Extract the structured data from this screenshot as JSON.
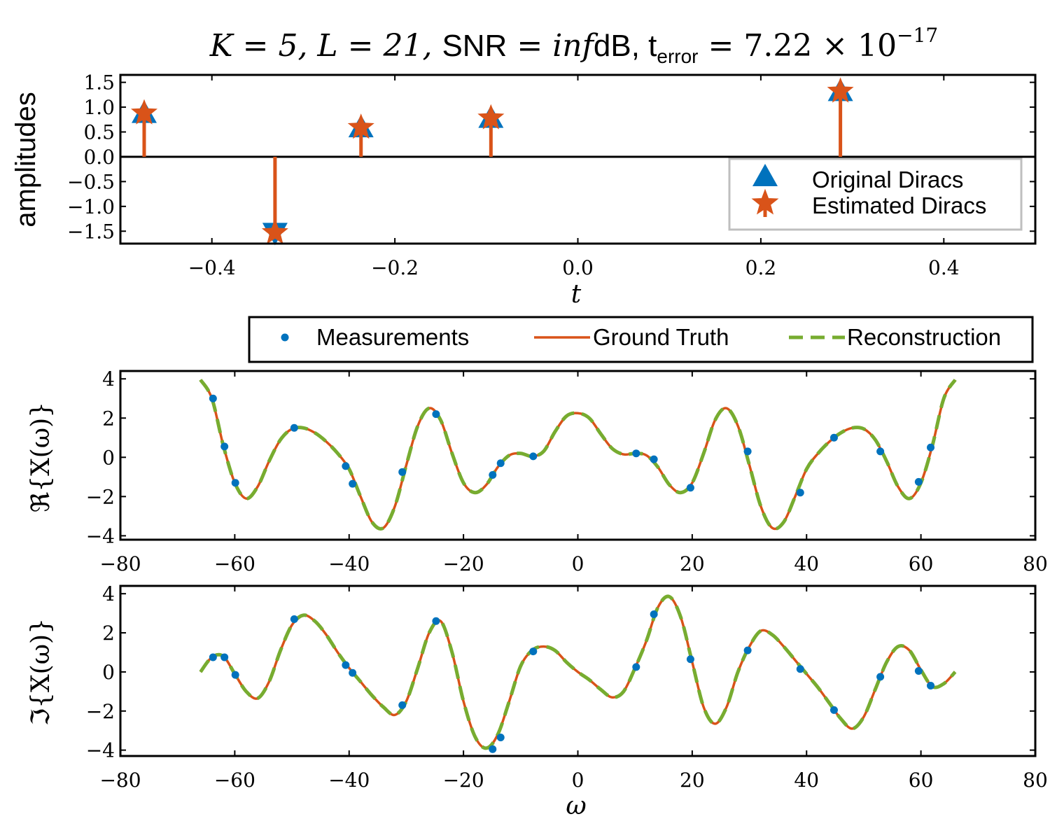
{
  "title": {
    "parts": [
      "K = 5, L = 21, ",
      "SNR",
      " = ",
      "inf",
      "dB, t",
      "error",
      " = 7.22 × 10",
      "−17"
    ]
  },
  "colors": {
    "blue": "#0072bd",
    "orange": "#d95319",
    "green": "#77ac30",
    "legend_border": "#bfbfbf",
    "axis": "#000000"
  },
  "chart_data": [
    {
      "type": "scatter",
      "id": "diracs",
      "xlabel": "t",
      "ylabel": "amplitudes",
      "xlim": [
        -0.5,
        0.5
      ],
      "ylim": [
        -1.75,
        1.65
      ],
      "xticks": [
        -0.4,
        -0.2,
        0.0,
        0.2,
        0.4
      ],
      "xtick_labels": [
        "−0.4",
        "−0.2",
        "0.0",
        "0.2",
        "0.4"
      ],
      "yticks": [
        1.5,
        1.0,
        0.5,
        0.0,
        -0.5,
        -1.0,
        -1.5
      ],
      "ytick_labels": [
        "1.5",
        "1.0",
        "0.5",
        "0.0",
        "−0.5",
        "−1.0",
        "−1.5"
      ],
      "legend_placement": "lower-right",
      "series": [
        {
          "name": "Original Diracs",
          "marker": "triangle",
          "x": [
            -0.474,
            -0.331,
            -0.237,
            -0.095,
            0.287
          ],
          "y": [
            0.88,
            -1.53,
            0.59,
            0.78,
            1.32
          ]
        },
        {
          "name": "Estimated Diracs",
          "marker": "star",
          "x": [
            -0.474,
            -0.331,
            -0.237,
            -0.095,
            0.287
          ],
          "y": [
            0.88,
            -1.53,
            0.59,
            0.78,
            1.32
          ]
        }
      ]
    },
    {
      "type": "line",
      "id": "real",
      "xlabel": "",
      "ylabel": "ℜ{X(ω)}",
      "xlim": [
        -80,
        80
      ],
      "ylim": [
        -4.2,
        4.4
      ],
      "xticks": [
        -80,
        -60,
        -40,
        -20,
        0,
        20,
        40,
        60,
        80
      ],
      "xtick_labels": [
        "−80",
        "−60",
        "−40",
        "−20",
        "0",
        "20",
        "40",
        "60",
        "80"
      ],
      "yticks": [
        4,
        2,
        0,
        -2,
        -4
      ],
      "ytick_labels": [
        "4",
        "2",
        "0",
        "−2",
        "−4"
      ],
      "legend_placement": "above",
      "curve_points": [
        [
          -66,
          3.95
        ],
        [
          -64,
          3.0
        ],
        [
          -62,
          0.6
        ],
        [
          -60,
          -1.3
        ],
        [
          -58,
          -2.1
        ],
        [
          -56,
          -1.5
        ],
        [
          -54,
          -0.2
        ],
        [
          -52,
          0.9
        ],
        [
          -50,
          1.45
        ],
        [
          -48,
          1.5
        ],
        [
          -46,
          1.25
        ],
        [
          -44,
          0.8
        ],
        [
          -42,
          0.2
        ],
        [
          -40,
          -0.6
        ],
        [
          -38,
          -2.0
        ],
        [
          -36,
          -3.3
        ],
        [
          -34,
          -3.6
        ],
        [
          -32,
          -2.5
        ],
        [
          -30,
          -0.4
        ],
        [
          -28,
          1.6
        ],
        [
          -26,
          2.5
        ],
        [
          -24,
          1.9
        ],
        [
          -22,
          0.2
        ],
        [
          -20,
          -1.3
        ],
        [
          -18,
          -1.8
        ],
        [
          -16,
          -1.4
        ],
        [
          -14,
          -0.5
        ],
        [
          -12,
          0.1
        ],
        [
          -10,
          0.2
        ],
        [
          -8,
          0.05
        ],
        [
          -6,
          0.3
        ],
        [
          -4,
          1.3
        ],
        [
          -2,
          2.1
        ],
        [
          0,
          2.25
        ],
        [
          2,
          2.0
        ],
        [
          4,
          1.2
        ],
        [
          6,
          0.45
        ],
        [
          8,
          0.15
        ],
        [
          10,
          0.2
        ],
        [
          12,
          0.1
        ],
        [
          14,
          -0.5
        ],
        [
          16,
          -1.4
        ],
        [
          18,
          -1.8
        ],
        [
          20,
          -1.3
        ],
        [
          22,
          0.2
        ],
        [
          24,
          1.9
        ],
        [
          26,
          2.5
        ],
        [
          28,
          1.6
        ],
        [
          30,
          -0.4
        ],
        [
          32,
          -2.5
        ],
        [
          34,
          -3.6
        ],
        [
          36,
          -3.3
        ],
        [
          38,
          -2.0
        ],
        [
          40,
          -0.6
        ],
        [
          42,
          0.2
        ],
        [
          44,
          0.8
        ],
        [
          46,
          1.25
        ],
        [
          48,
          1.5
        ],
        [
          50,
          1.45
        ],
        [
          52,
          0.9
        ],
        [
          54,
          -0.2
        ],
        [
          56,
          -1.5
        ],
        [
          58,
          -2.1
        ],
        [
          60,
          -1.3
        ],
        [
          62,
          0.6
        ],
        [
          64,
          3.0
        ],
        [
          66,
          3.95
        ]
      ],
      "series": [
        {
          "name": "Measurements",
          "style": "dots",
          "x": [
            -63.8,
            -61.8,
            -59.9,
            -49.6,
            -40.6,
            -39.4,
            -30.7,
            -24.8,
            -14.9,
            -13.5,
            -7.8,
            10.2,
            13.3,
            19.7,
            29.7,
            38.9,
            44.8,
            52.9,
            59.6,
            61.7
          ],
          "y": [
            3.0,
            0.55,
            -1.3,
            1.5,
            -0.45,
            -1.35,
            -0.75,
            2.2,
            -0.9,
            -0.3,
            0.05,
            0.2,
            -0.1,
            -1.55,
            0.3,
            -1.8,
            1.0,
            0.3,
            -1.25,
            0.5
          ]
        },
        {
          "name": "Ground Truth",
          "style": "solid"
        },
        {
          "name": "Reconstruction",
          "style": "dashed"
        }
      ]
    },
    {
      "type": "line",
      "id": "imag",
      "xlabel": "ω",
      "ylabel": "ℑ{X(ω)}",
      "xlim": [
        -80,
        80
      ],
      "ylim": [
        -4.3,
        4.4
      ],
      "xticks": [
        -80,
        -60,
        -40,
        -20,
        0,
        20,
        40,
        60,
        80
      ],
      "xtick_labels": [
        "−80",
        "−60",
        "−40",
        "−20",
        "0",
        "20",
        "40",
        "60",
        "80"
      ],
      "yticks": [
        4,
        2,
        0,
        -2,
        -4
      ],
      "ytick_labels": [
        "4",
        "2",
        "0",
        "−2",
        "−4"
      ],
      "curve_points": [
        [
          -66,
          0.0
        ],
        [
          -64,
          0.75
        ],
        [
          -62,
          0.8
        ],
        [
          -60,
          -0.1
        ],
        [
          -58,
          -1.0
        ],
        [
          -56,
          -1.35
        ],
        [
          -54,
          -0.5
        ],
        [
          -52,
          1.1
        ],
        [
          -50,
          2.4
        ],
        [
          -48,
          2.9
        ],
        [
          -46,
          2.6
        ],
        [
          -44,
          1.9
        ],
        [
          -42,
          1.0
        ],
        [
          -40,
          0.2
        ],
        [
          -38,
          -0.5
        ],
        [
          -36,
          -1.2
        ],
        [
          -34,
          -1.8
        ],
        [
          -32,
          -2.2
        ],
        [
          -30,
          -1.5
        ],
        [
          -28,
          0.2
        ],
        [
          -26,
          2.0
        ],
        [
          -24,
          2.6
        ],
        [
          -22,
          1.0
        ],
        [
          -20,
          -1.5
        ],
        [
          -18,
          -3.3
        ],
        [
          -16,
          -3.9
        ],
        [
          -14,
          -3.2
        ],
        [
          -12,
          -1.5
        ],
        [
          -10,
          0.3
        ],
        [
          -8,
          1.1
        ],
        [
          -6,
          1.3
        ],
        [
          -4,
          1.1
        ],
        [
          -2,
          0.5
        ],
        [
          0,
          0.0
        ],
        [
          2,
          -0.4
        ],
        [
          4,
          -0.9
        ],
        [
          6,
          -1.3
        ],
        [
          8,
          -1.0
        ],
        [
          10,
          0.2
        ],
        [
          12,
          1.6
        ],
        [
          14,
          3.3
        ],
        [
          16,
          3.85
        ],
        [
          18,
          2.8
        ],
        [
          20,
          0.5
        ],
        [
          22,
          -1.8
        ],
        [
          24,
          -2.65
        ],
        [
          26,
          -1.8
        ],
        [
          28,
          0.0
        ],
        [
          30,
          1.3
        ],
        [
          32,
          2.1
        ],
        [
          34,
          1.9
        ],
        [
          36,
          1.3
        ],
        [
          38,
          0.6
        ],
        [
          40,
          -0.1
        ],
        [
          42,
          -0.8
        ],
        [
          44,
          -1.6
        ],
        [
          46,
          -2.4
        ],
        [
          48,
          -2.9
        ],
        [
          50,
          -2.3
        ],
        [
          52,
          -0.9
        ],
        [
          54,
          0.5
        ],
        [
          56,
          1.3
        ],
        [
          58,
          1.1
        ],
        [
          60,
          0.1
        ],
        [
          62,
          -0.75
        ],
        [
          64,
          -0.6
        ],
        [
          66,
          0.0
        ]
      ],
      "series": [
        {
          "name": "Measurements",
          "style": "dots",
          "x": [
            -63.8,
            -61.8,
            -59.9,
            -49.6,
            -40.6,
            -39.4,
            -30.7,
            -24.8,
            -14.9,
            -13.5,
            -7.8,
            10.2,
            13.3,
            19.7,
            29.7,
            38.9,
            44.8,
            52.9,
            59.6,
            61.7
          ],
          "y": [
            0.75,
            0.75,
            -0.15,
            2.7,
            0.35,
            -0.05,
            -1.7,
            2.6,
            -3.95,
            -3.35,
            1.05,
            0.25,
            2.95,
            0.65,
            1.1,
            0.15,
            -1.95,
            -0.25,
            0.05,
            -0.7
          ]
        },
        {
          "name": "Ground Truth",
          "style": "solid"
        },
        {
          "name": "Reconstruction",
          "style": "dashed"
        }
      ]
    }
  ]
}
